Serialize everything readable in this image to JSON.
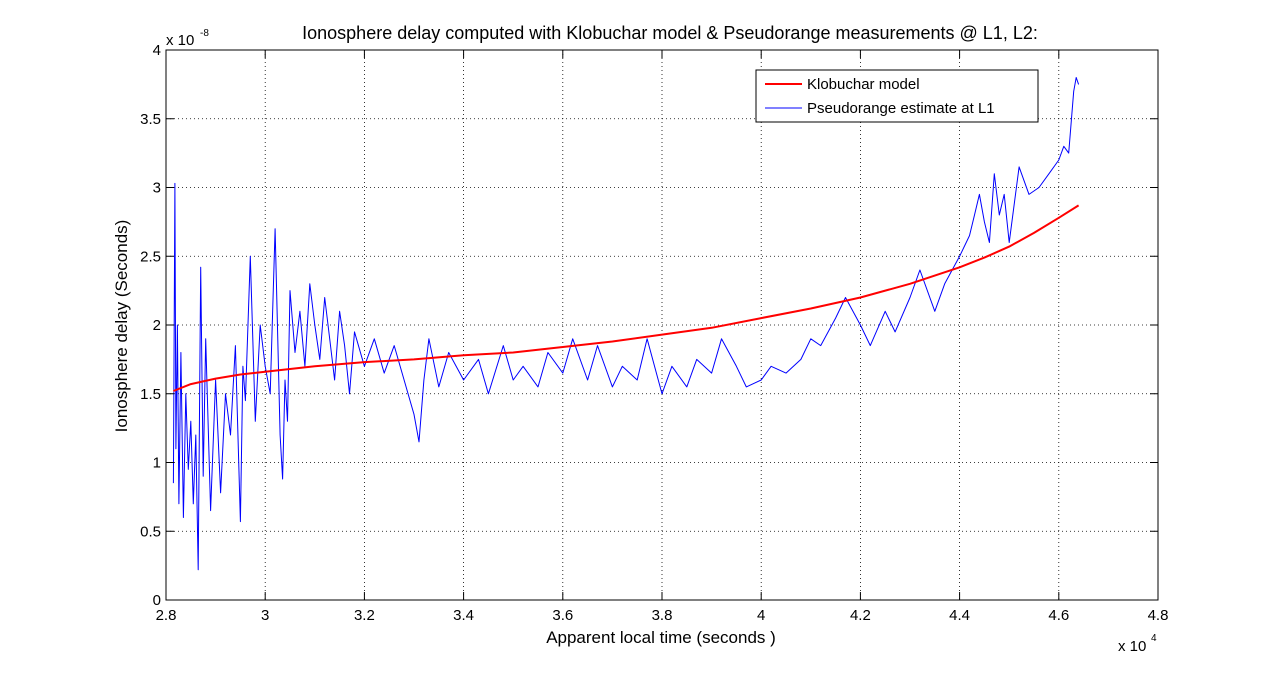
{
  "chart_data": {
    "type": "line",
    "title": "Ionosphere delay computed with Klobuchar model & Pseudorange measurements @ L1, L2:",
    "xlabel": "Apparent local time (seconds )",
    "ylabel": "Ionosphere delay (Seconds)",
    "x_multiplier": {
      "base": "x 10",
      "exponent": "4"
    },
    "y_multiplier": {
      "base": "x 10",
      "exponent": "-8"
    },
    "xlim": [
      2.8,
      4.8
    ],
    "ylim": [
      0,
      4
    ],
    "xticks": [
      2.8,
      3.0,
      3.2,
      3.4,
      3.6,
      3.8,
      4.0,
      4.2,
      4.4,
      4.6,
      4.8
    ],
    "xtick_labels": [
      "2.8",
      "3",
      "3.2",
      "3.4",
      "3.6",
      "3.8",
      "4",
      "4.2",
      "4.4",
      "4.6",
      "4.8"
    ],
    "yticks": [
      0,
      0.5,
      1,
      1.5,
      2,
      2.5,
      3,
      3.5,
      4
    ],
    "ytick_labels": [
      "0",
      "0.5",
      "1",
      "1.5",
      "2",
      "2.5",
      "3",
      "3.5",
      "4"
    ],
    "grid": true,
    "legend_position": "top-right",
    "series": [
      {
        "name": "Klobuchar model",
        "color": "#ff0000",
        "x": [
          2.815,
          2.85,
          2.9,
          2.95,
          3.0,
          3.1,
          3.2,
          3.3,
          3.4,
          3.5,
          3.6,
          3.7,
          3.8,
          3.9,
          4.0,
          4.1,
          4.2,
          4.3,
          4.4,
          4.45,
          4.5,
          4.55,
          4.6,
          4.64
        ],
        "y": [
          1.52,
          1.57,
          1.61,
          1.64,
          1.66,
          1.7,
          1.73,
          1.75,
          1.78,
          1.8,
          1.84,
          1.88,
          1.93,
          1.98,
          2.05,
          2.12,
          2.2,
          2.3,
          2.42,
          2.49,
          2.57,
          2.67,
          2.78,
          2.87
        ]
      },
      {
        "name": "Pseudorange estimate at L1",
        "color": "#0000ff",
        "x": [
          2.815,
          2.818,
          2.82,
          2.823,
          2.826,
          2.83,
          2.835,
          2.84,
          2.845,
          2.85,
          2.855,
          2.86,
          2.865,
          2.87,
          2.875,
          2.88,
          2.89,
          2.9,
          2.91,
          2.92,
          2.93,
          2.94,
          2.95,
          2.955,
          2.96,
          2.97,
          2.98,
          2.99,
          3.0,
          3.01,
          3.02,
          3.03,
          3.035,
          3.04,
          3.045,
          3.05,
          3.06,
          3.07,
          3.08,
          3.09,
          3.1,
          3.11,
          3.12,
          3.13,
          3.14,
          3.15,
          3.16,
          3.17,
          3.18,
          3.2,
          3.22,
          3.24,
          3.26,
          3.28,
          3.3,
          3.31,
          3.32,
          3.33,
          3.35,
          3.37,
          3.4,
          3.43,
          3.45,
          3.48,
          3.5,
          3.52,
          3.55,
          3.57,
          3.6,
          3.62,
          3.65,
          3.67,
          3.7,
          3.72,
          3.75,
          3.77,
          3.8,
          3.82,
          3.85,
          3.87,
          3.9,
          3.92,
          3.95,
          3.97,
          4.0,
          4.02,
          4.05,
          4.08,
          4.1,
          4.12,
          4.15,
          4.17,
          4.2,
          4.22,
          4.25,
          4.27,
          4.3,
          4.32,
          4.35,
          4.37,
          4.4,
          4.42,
          4.43,
          4.44,
          4.45,
          4.46,
          4.47,
          4.48,
          4.49,
          4.5,
          4.52,
          4.54,
          4.56,
          4.58,
          4.6,
          4.61,
          4.62,
          4.63,
          4.635,
          4.64
        ],
        "y": [
          0.85,
          3.03,
          1.1,
          2.0,
          0.7,
          1.8,
          0.6,
          1.5,
          0.95,
          1.3,
          0.7,
          1.2,
          0.22,
          2.42,
          0.9,
          1.9,
          0.65,
          1.6,
          0.78,
          1.5,
          1.2,
          1.85,
          0.57,
          1.7,
          1.45,
          2.5,
          1.3,
          2.0,
          1.7,
          1.5,
          2.7,
          1.2,
          0.88,
          1.6,
          1.3,
          2.25,
          1.8,
          2.1,
          1.7,
          2.3,
          2.0,
          1.75,
          2.2,
          1.9,
          1.6,
          2.1,
          1.85,
          1.5,
          1.95,
          1.7,
          1.9,
          1.65,
          1.85,
          1.6,
          1.35,
          1.15,
          1.6,
          1.9,
          1.55,
          1.8,
          1.6,
          1.75,
          1.5,
          1.85,
          1.6,
          1.7,
          1.55,
          1.8,
          1.65,
          1.9,
          1.6,
          1.85,
          1.55,
          1.7,
          1.6,
          1.9,
          1.5,
          1.7,
          1.55,
          1.75,
          1.65,
          1.9,
          1.7,
          1.55,
          1.6,
          1.7,
          1.65,
          1.75,
          1.9,
          1.85,
          2.05,
          2.2,
          2.0,
          1.85,
          2.1,
          1.95,
          2.2,
          2.4,
          2.1,
          2.3,
          2.5,
          2.65,
          2.8,
          2.95,
          2.75,
          2.6,
          3.1,
          2.8,
          2.95,
          2.6,
          3.15,
          2.95,
          3.0,
          3.1,
          3.2,
          3.3,
          3.25,
          3.7,
          3.8,
          3.75
        ]
      }
    ]
  }
}
